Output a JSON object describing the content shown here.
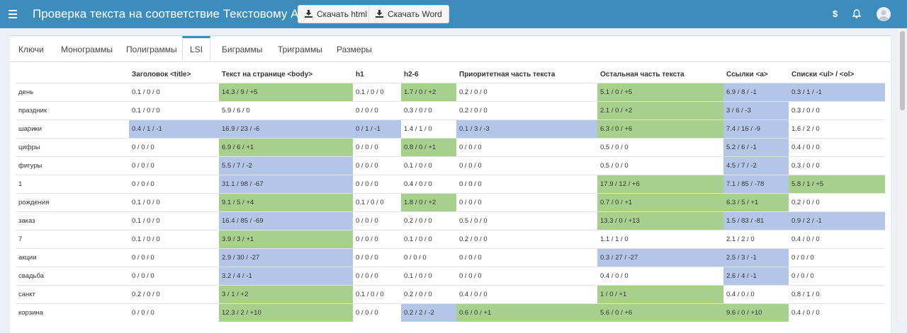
{
  "header": {
    "title": "Проверка текста на соответствие Текстовому Анализу",
    "download_html": "Скачать html",
    "download_word": "Скачать Word",
    "dollar_icon": "$",
    "bell_icon": "bell"
  },
  "tabs": [
    "Ключи",
    "Монограммы",
    "Полиграммы",
    "LSI",
    "Биграммы",
    "Триграммы",
    "Размеры"
  ],
  "active_tab": "LSI",
  "table": {
    "columns": [
      "",
      "Заголовок <title>",
      "Текст на странице <body>",
      "h1",
      "h2-6",
      "Приоритетная часть текста",
      "Остальная часть текста",
      "Ссылки <a>",
      "Списки <ul> / <ol>"
    ],
    "rows": [
      {
        "key": "день",
        "cells": [
          [
            "0.1 / 0 / 0",
            ""
          ],
          [
            "14.3 / 9 / +5",
            "g"
          ],
          [
            "0.1 / 0 / 0",
            ""
          ],
          [
            "1.7 / 0 / +2",
            "g"
          ],
          [
            "0.2 / 0 / 0",
            ""
          ],
          [
            "5.1 / 0 / +5",
            "g"
          ],
          [
            "6.9 / 8 / -1",
            "b"
          ],
          [
            "0.3 / 1 / -1",
            "b"
          ]
        ]
      },
      {
        "key": "праздник",
        "cells": [
          [
            "0.1 / 0 / 0",
            ""
          ],
          [
            "5.9 / 6 / 0",
            ""
          ],
          [
            "0 / 0 / 0",
            ""
          ],
          [
            "0.3 / 0 / 0",
            ""
          ],
          [
            "0.2 / 0 / 0",
            ""
          ],
          [
            "2.1 / 0 / +2",
            "g"
          ],
          [
            "3 / 6 / -3",
            "b"
          ],
          [
            "0.3 / 0 / 0",
            ""
          ]
        ]
      },
      {
        "key": "шарики",
        "cells": [
          [
            "0.4 / 1 / -1",
            "b"
          ],
          [
            "16.9 / 23 / -6",
            "b"
          ],
          [
            "0 / 1 / -1",
            "b"
          ],
          [
            "1.4 / 1 / 0",
            ""
          ],
          [
            "0.1 / 3 / -3",
            "b"
          ],
          [
            "6.3 / 0 / +6",
            "g"
          ],
          [
            "7.4 / 16 / -9",
            "b"
          ],
          [
            "1.6 / 2 / 0",
            ""
          ]
        ]
      },
      {
        "key": "цифры",
        "cells": [
          [
            "0 / 0 / 0",
            ""
          ],
          [
            "6.9 / 6 / +1",
            "g"
          ],
          [
            "0 / 0 / 0",
            ""
          ],
          [
            "0.8 / 0 / +1",
            "g"
          ],
          [
            "0 / 0 / 0",
            ""
          ],
          [
            "0.5 / 0 / 0",
            ""
          ],
          [
            "5.2 / 6 / -1",
            "b"
          ],
          [
            "0.4 / 0 / 0",
            ""
          ]
        ]
      },
      {
        "key": "фигуры",
        "cells": [
          [
            "0 / 0 / 0",
            ""
          ],
          [
            "5.5 / 7 / -2",
            "b"
          ],
          [
            "0 / 0 / 0",
            ""
          ],
          [
            "0.1 / 0 / 0",
            ""
          ],
          [
            "0 / 0 / 0",
            ""
          ],
          [
            "0.5 / 0 / 0",
            ""
          ],
          [
            "4.5 / 7 / -2",
            "b"
          ],
          [
            "0.3 / 0 / 0",
            ""
          ]
        ]
      },
      {
        "key": "1",
        "cells": [
          [
            "0 / 0 / 0",
            ""
          ],
          [
            "31.1 / 98 / -67",
            "b"
          ],
          [
            "0 / 0 / 0",
            ""
          ],
          [
            "0.4 / 0 / 0",
            ""
          ],
          [
            "0 / 0 / 0",
            ""
          ],
          [
            "17.9 / 12 / +6",
            "g"
          ],
          [
            "7.1 / 85 / -78",
            "b"
          ],
          [
            "5.8 / 1 / +5",
            "g"
          ]
        ]
      },
      {
        "key": "рождения",
        "cells": [
          [
            "0.1 / 0 / 0",
            ""
          ],
          [
            "9.1 / 5 / +4",
            "g"
          ],
          [
            "0.1 / 0 / 0",
            ""
          ],
          [
            "1.8 / 0 / +2",
            "g"
          ],
          [
            "0 / 0 / 0",
            ""
          ],
          [
            "0.7 / 0 / +1",
            "g"
          ],
          [
            "6.3 / 5 / +1",
            "g"
          ],
          [
            "0.2 / 0 / 0",
            ""
          ]
        ]
      },
      {
        "key": "заказ",
        "cells": [
          [
            "0.1 / 0 / 0",
            ""
          ],
          [
            "16.4 / 85 / -69",
            "b"
          ],
          [
            "0 / 0 / 0",
            ""
          ],
          [
            "0.2 / 0 / 0",
            ""
          ],
          [
            "0.5 / 0 / 0",
            ""
          ],
          [
            "13.3 / 0 / +13",
            "g"
          ],
          [
            "1.5 / 83 / -81",
            "b"
          ],
          [
            "0.9 / 2 / -1",
            "b"
          ]
        ]
      },
      {
        "key": "7",
        "cells": [
          [
            "0.1 / 0 / 0",
            ""
          ],
          [
            "3.9 / 3 / +1",
            "g"
          ],
          [
            "0 / 0 / 0",
            ""
          ],
          [
            "0.1 / 0 / 0",
            ""
          ],
          [
            "0.2 / 0 / 0",
            ""
          ],
          [
            "1.1 / 1 / 0",
            ""
          ],
          [
            "2.1 / 2 / 0",
            ""
          ],
          [
            "0.4 / 0 / 0",
            ""
          ]
        ]
      },
      {
        "key": "акции",
        "cells": [
          [
            "0 / 0 / 0",
            ""
          ],
          [
            "2.9 / 30 / -27",
            "b"
          ],
          [
            "0 / 0 / 0",
            ""
          ],
          [
            "0 / 0 / 0",
            ""
          ],
          [
            "0 / 0 / 0",
            ""
          ],
          [
            "0.3 / 27 / -27",
            "b"
          ],
          [
            "2.5 / 3 / -1",
            "b"
          ],
          [
            "0 / 0 / 0",
            ""
          ]
        ]
      },
      {
        "key": "свадьба",
        "cells": [
          [
            "0 / 0 / 0",
            ""
          ],
          [
            "3.2 / 4 / -1",
            "b"
          ],
          [
            "0 / 0 / 0",
            ""
          ],
          [
            "0.1 / 0 / 0",
            ""
          ],
          [
            "0 / 0 / 0",
            ""
          ],
          [
            "0.4 / 0 / 0",
            ""
          ],
          [
            "2.6 / 4 / -1",
            "b"
          ],
          [
            "0 / 0 / 0",
            ""
          ]
        ]
      },
      {
        "key": "санкт",
        "cells": [
          [
            "0.2 / 0 / 0",
            ""
          ],
          [
            "3 / 1 / +2",
            "g"
          ],
          [
            "0.1 / 0 / 0",
            ""
          ],
          [
            "0.2 / 0 / 0",
            ""
          ],
          [
            "0.4 / 0 / 0",
            ""
          ],
          [
            "1 / 0 / +1",
            "g"
          ],
          [
            "0.4 / 0 / 0",
            ""
          ],
          [
            "0.8 / 1 / 0",
            ""
          ]
        ]
      },
      {
        "key": "корзина",
        "cells": [
          [
            "0 / 0 / 0",
            ""
          ],
          [
            "12.3 / 2 / +10",
            "g"
          ],
          [
            "0 / 0 / 0",
            ""
          ],
          [
            "0.2 / 2 / -2",
            "b"
          ],
          [
            "0.6 / 0 / +1",
            "g"
          ],
          [
            "5.6 / 0 / +6",
            "g"
          ],
          [
            "9.6 / 0 / +10",
            "g"
          ],
          [
            "0.4 / 0 / 0",
            ""
          ]
        ]
      }
    ]
  },
  "colors": {
    "header": "#3c8dbc",
    "cell_above": "#a8d08d",
    "cell_below": "#b4c6e7"
  }
}
